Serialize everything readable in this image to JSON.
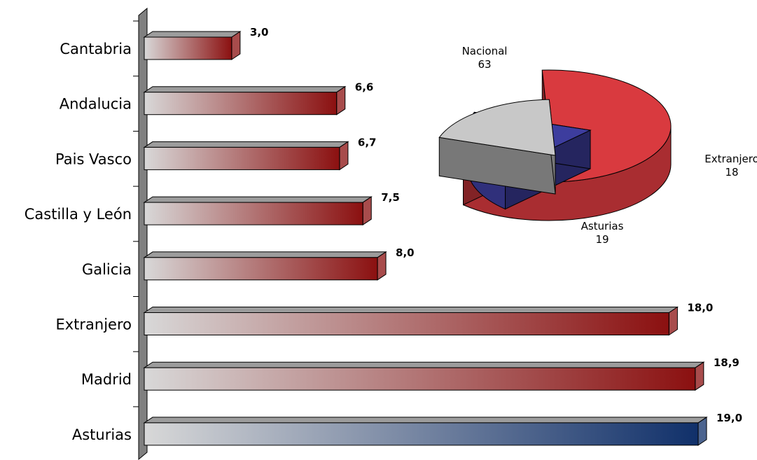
{
  "chart_data": [
    {
      "type": "bar",
      "orientation": "horizontal",
      "categories": [
        "Cantabria",
        "Andalucia",
        "Pais Vasco",
        "Castilla y León",
        "Galicia",
        "Extranjero",
        "Madrid",
        "Asturias"
      ],
      "values": [
        3.0,
        6.6,
        6.7,
        7.5,
        8.0,
        18.0,
        18.9,
        19.0
      ],
      "value_labels": [
        "3,0",
        "6,6",
        "6,7",
        "7,5",
        "8,0",
        "18,0",
        "18,9",
        "19,0"
      ],
      "xlim": [
        0,
        19.0
      ],
      "grid": false,
      "colors": {
        "bar_start": "#d8d8d8",
        "bar_end": "#8b1010",
        "highlight_end": "#10306a",
        "wall": "#808080"
      },
      "highlight_category": "Asturias"
    },
    {
      "type": "pie",
      "labels": [
        "Nacional",
        "Extranjero",
        "Asturias"
      ],
      "values": [
        63,
        18,
        19
      ],
      "value_labels": [
        "63",
        "18",
        "19"
      ],
      "colors": {
        "Nacional": "#d93a3f",
        "Extranjero": "#3d3d9e",
        "Asturias": "#c8c8c8"
      },
      "exploded": [
        "Extranjero",
        "Asturias"
      ]
    }
  ]
}
